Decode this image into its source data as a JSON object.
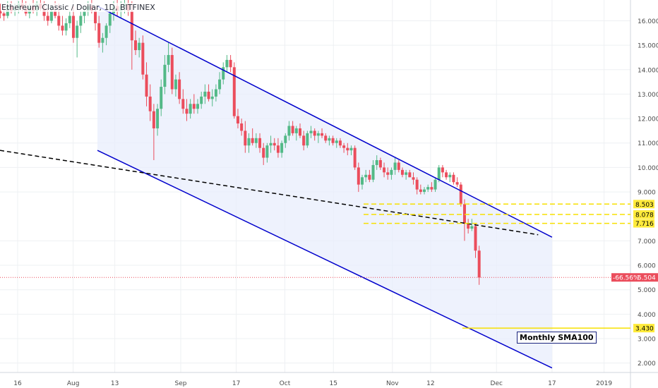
{
  "chart_data": {
    "type": "candlestick",
    "title": "Ethereum Classic / Dollar, 1D, BITFINEX",
    "x_tick_labels": [
      "16",
      "Aug",
      "13",
      "Sep",
      "17",
      "Oct",
      "15",
      "Nov",
      "12",
      "Dec",
      "17",
      "2019"
    ],
    "y_tick_labels": [
      "2.000",
      "3.000",
      "4.000",
      "5.000",
      "6.000",
      "7.000",
      "9.000",
      "10.000",
      "11.000",
      "12.000",
      "13.000",
      "14.000",
      "15.000",
      "16.000"
    ],
    "y_ticks": [
      2,
      3,
      4,
      5,
      6,
      7,
      9,
      10,
      11,
      12,
      13,
      14,
      15,
      16
    ],
    "ylim": [
      1.5,
      16.85
    ],
    "grid": true,
    "colors": {
      "up": "#53b987",
      "down": "#eb4d5c",
      "channel": "#0000cc",
      "channel_fill": "#e8eefc",
      "trend": "#000000",
      "level": "#ffeb3b",
      "level_line": "#f7e000",
      "price_line": "#eb4d5c",
      "label_text": "#000000"
    },
    "candles_ohlc": [
      [
        16.4,
        16.7,
        16.1,
        16.3
      ],
      [
        16.3,
        16.6,
        16.0,
        16.2
      ],
      [
        16.2,
        16.8,
        16.1,
        16.6
      ],
      [
        16.6,
        16.8,
        16.3,
        16.4
      ],
      [
        16.4,
        16.7,
        16.2,
        16.5
      ],
      [
        16.5,
        16.8,
        16.3,
        16.7
      ],
      [
        16.7,
        16.9,
        16.4,
        16.5
      ],
      [
        16.5,
        16.8,
        16.2,
        16.3
      ],
      [
        16.3,
        16.7,
        16.1,
        16.6
      ],
      [
        16.6,
        16.9,
        16.3,
        16.4
      ],
      [
        16.4,
        16.8,
        16.2,
        16.7
      ],
      [
        16.7,
        16.9,
        16.4,
        16.5
      ],
      [
        16.5,
        16.8,
        16.0,
        16.2
      ],
      [
        16.2,
        16.5,
        15.8,
        16.0
      ],
      [
        16.0,
        16.6,
        15.9,
        16.4
      ],
      [
        16.4,
        16.8,
        16.1,
        16.2
      ],
      [
        16.2,
        16.7,
        15.6,
        15.8
      ],
      [
        15.8,
        16.2,
        15.4,
        15.6
      ],
      [
        15.6,
        16.1,
        15.4,
        15.9
      ],
      [
        15.9,
        16.4,
        15.7,
        16.2
      ],
      [
        16.2,
        16.6,
        15.1,
        15.3
      ],
      [
        15.3,
        16.0,
        14.5,
        15.8
      ],
      [
        15.8,
        16.4,
        15.5,
        16.2
      ],
      [
        16.2,
        16.6,
        15.9,
        16.4
      ],
      [
        16.4,
        16.8,
        16.2,
        16.6
      ],
      [
        16.6,
        16.9,
        16.3,
        16.4
      ],
      [
        16.4,
        16.6,
        15.6,
        15.9
      ],
      [
        15.9,
        16.2,
        14.9,
        15.1
      ],
      [
        15.1,
        15.5,
        14.7,
        15.3
      ],
      [
        15.3,
        15.9,
        15.0,
        15.8
      ],
      [
        15.8,
        16.5,
        15.5,
        16.3
      ],
      [
        16.3,
        16.8,
        16.0,
        16.6
      ],
      [
        16.6,
        16.9,
        16.2,
        16.4
      ],
      [
        16.4,
        16.8,
        16.1,
        16.6
      ],
      [
        16.6,
        16.9,
        16.3,
        16.7
      ],
      [
        16.7,
        16.9,
        16.2,
        16.4
      ],
      [
        16.4,
        16.8,
        14.0,
        15.2
      ],
      [
        15.2,
        15.6,
        14.6,
        14.8
      ],
      [
        14.8,
        15.3,
        14.5,
        15.1
      ],
      [
        15.1,
        15.4,
        13.6,
        13.8
      ],
      [
        13.8,
        14.3,
        12.5,
        12.9
      ],
      [
        12.9,
        13.4,
        11.9,
        12.3
      ],
      [
        12.3,
        12.6,
        10.3,
        11.6
      ],
      [
        11.6,
        12.6,
        11.3,
        12.4
      ],
      [
        12.4,
        13.6,
        12.1,
        13.3
      ],
      [
        13.3,
        14.6,
        13.0,
        14.2
      ],
      [
        14.2,
        15.1,
        13.9,
        14.6
      ],
      [
        14.6,
        14.9,
        13.0,
        13.2
      ],
      [
        13.2,
        13.8,
        12.9,
        13.6
      ],
      [
        13.6,
        13.9,
        12.6,
        12.8
      ],
      [
        12.8,
        13.2,
        12.2,
        12.4
      ],
      [
        12.4,
        12.8,
        11.9,
        12.2
      ],
      [
        12.2,
        12.8,
        12.0,
        12.6
      ],
      [
        12.6,
        13.0,
        12.2,
        12.4
      ],
      [
        12.4,
        12.8,
        12.2,
        12.6
      ],
      [
        12.6,
        13.1,
        12.4,
        12.9
      ],
      [
        12.9,
        13.4,
        12.6,
        13.1
      ],
      [
        13.1,
        13.4,
        12.7,
        12.8
      ],
      [
        12.8,
        13.2,
        12.5,
        12.9
      ],
      [
        12.9,
        13.4,
        12.7,
        13.2
      ],
      [
        13.2,
        13.9,
        13.0,
        13.6
      ],
      [
        13.6,
        14.3,
        13.4,
        14.1
      ],
      [
        14.1,
        14.6,
        13.9,
        14.4
      ],
      [
        14.4,
        14.6,
        13.9,
        14.1
      ],
      [
        14.1,
        14.3,
        12.0,
        12.1
      ],
      [
        12.1,
        12.4,
        11.6,
        11.8
      ],
      [
        11.8,
        12.0,
        11.3,
        11.5
      ],
      [
        11.5,
        11.9,
        10.6,
        10.9
      ],
      [
        10.9,
        11.4,
        10.6,
        11.2
      ],
      [
        11.2,
        11.6,
        10.9,
        11.0
      ],
      [
        11.0,
        11.4,
        10.8,
        11.2
      ],
      [
        11.2,
        11.4,
        10.6,
        10.8
      ],
      [
        10.8,
        11.0,
        10.1,
        10.4
      ],
      [
        10.4,
        11.0,
        10.2,
        10.9
      ],
      [
        10.9,
        11.3,
        10.6,
        11.0
      ],
      [
        11.0,
        11.2,
        10.7,
        10.9
      ],
      [
        10.9,
        11.2,
        10.4,
        10.6
      ],
      [
        10.6,
        11.1,
        10.4,
        11.0
      ],
      [
        11.0,
        11.4,
        10.8,
        11.3
      ],
      [
        11.3,
        11.9,
        11.1,
        11.7
      ],
      [
        11.7,
        11.9,
        11.3,
        11.4
      ],
      [
        11.4,
        11.7,
        11.1,
        11.6
      ],
      [
        11.6,
        11.8,
        11.2,
        11.3
      ],
      [
        11.3,
        11.5,
        10.7,
        10.9
      ],
      [
        10.9,
        11.5,
        10.8,
        11.4
      ],
      [
        11.4,
        11.7,
        11.2,
        11.5
      ],
      [
        11.5,
        11.6,
        11.1,
        11.3
      ],
      [
        11.3,
        11.5,
        11.0,
        11.4
      ],
      [
        11.4,
        11.6,
        11.2,
        11.3
      ],
      [
        11.3,
        11.4,
        11.0,
        11.1
      ],
      [
        11.1,
        11.3,
        10.9,
        11.2
      ],
      [
        11.2,
        11.3,
        10.9,
        11.0
      ],
      [
        11.0,
        11.2,
        10.8,
        11.1
      ],
      [
        11.1,
        11.2,
        10.8,
        10.9
      ],
      [
        10.9,
        11.0,
        10.6,
        10.8
      ],
      [
        10.8,
        11.0,
        10.5,
        10.7
      ],
      [
        10.7,
        10.9,
        10.5,
        10.8
      ],
      [
        10.8,
        10.9,
        9.9,
        10.0
      ],
      [
        10.0,
        10.2,
        9.0,
        9.3
      ],
      [
        9.3,
        9.7,
        9.1,
        9.6
      ],
      [
        9.6,
        9.9,
        9.4,
        9.7
      ],
      [
        9.7,
        9.9,
        9.4,
        9.5
      ],
      [
        9.5,
        10.3,
        9.4,
        10.1
      ],
      [
        10.1,
        10.5,
        9.9,
        10.3
      ],
      [
        10.3,
        10.4,
        9.9,
        10.0
      ],
      [
        10.0,
        10.2,
        9.6,
        9.8
      ],
      [
        9.8,
        10.0,
        9.5,
        9.7
      ],
      [
        9.7,
        10.0,
        9.5,
        9.9
      ],
      [
        9.9,
        10.4,
        9.7,
        10.2
      ],
      [
        10.2,
        10.3,
        9.8,
        9.9
      ],
      [
        9.9,
        10.0,
        9.6,
        9.7
      ],
      [
        9.7,
        9.9,
        9.5,
        9.8
      ],
      [
        9.8,
        9.9,
        9.6,
        9.6
      ],
      [
        9.6,
        9.8,
        9.3,
        9.5
      ],
      [
        9.5,
        9.6,
        8.9,
        9.1
      ],
      [
        9.1,
        9.3,
        8.9,
        9.0
      ],
      [
        9.0,
        9.2,
        8.9,
        9.1
      ],
      [
        9.1,
        9.3,
        9.0,
        9.2
      ],
      [
        9.2,
        9.4,
        9.0,
        9.1
      ],
      [
        9.1,
        9.6,
        9.0,
        9.5
      ],
      [
        9.5,
        10.1,
        9.4,
        10.0
      ],
      [
        10.0,
        10.1,
        9.6,
        9.8
      ],
      [
        9.8,
        9.9,
        9.5,
        9.6
      ],
      [
        9.6,
        9.8,
        9.4,
        9.7
      ],
      [
        9.7,
        9.8,
        9.3,
        9.4
      ],
      [
        9.4,
        9.6,
        9.2,
        9.3
      ],
      [
        9.3,
        9.4,
        8.4,
        8.5
      ],
      [
        8.5,
        8.7,
        7.0,
        7.7
      ],
      [
        7.7,
        7.9,
        7.3,
        7.5
      ],
      [
        7.5,
        7.9,
        7.4,
        7.6
      ],
      [
        7.6,
        7.7,
        6.3,
        6.6
      ],
      [
        6.6,
        6.8,
        5.2,
        5.5
      ]
    ],
    "channel": {
      "upper": [
        [
          "2018-08-08",
          16.6
        ],
        [
          "2018-12-17",
          7.15
        ]
      ],
      "lower": [
        [
          "2018-08-08",
          10.7
        ],
        [
          "2018-12-17",
          1.8
        ]
      ]
    },
    "trend_line": [
      [
        "2018-07-11",
        10.7
      ],
      [
        "2018-12-13",
        7.25
      ]
    ],
    "levels": [
      {
        "label": "8.503",
        "value": 8.503
      },
      {
        "label": "8.078",
        "value": 8.078
      },
      {
        "label": "7.716",
        "value": 7.716
      },
      {
        "label": "3.430",
        "value": 3.43
      }
    ],
    "price_line": {
      "value": 5.504,
      "pct_label": "-66.56%",
      "price_label": "5.504"
    },
    "annotations": [
      "Monthly SMA100"
    ]
  }
}
